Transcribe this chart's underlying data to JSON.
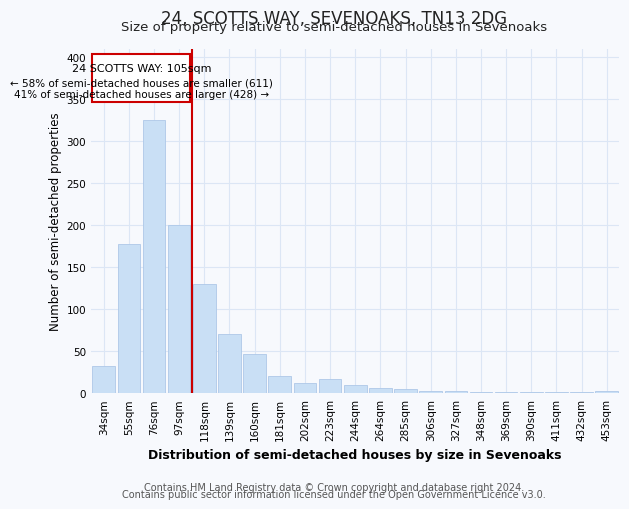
{
  "title": "24, SCOTTS WAY, SEVENOAKS, TN13 2DG",
  "subtitle": "Size of property relative to semi-detached houses in Sevenoaks",
  "xlabel": "Distribution of semi-detached houses by size in Sevenoaks",
  "ylabel": "Number of semi-detached properties",
  "footer_line1": "Contains HM Land Registry data © Crown copyright and database right 2024.",
  "footer_line2": "Contains public sector information licensed under the Open Government Licence v3.0.",
  "categories": [
    "34sqm",
    "55sqm",
    "76sqm",
    "97sqm",
    "118sqm",
    "139sqm",
    "160sqm",
    "181sqm",
    "202sqm",
    "223sqm",
    "244sqm",
    "264sqm",
    "285sqm",
    "306sqm",
    "327sqm",
    "348sqm",
    "369sqm",
    "390sqm",
    "411sqm",
    "432sqm",
    "453sqm"
  ],
  "values": [
    32,
    178,
    325,
    200,
    130,
    70,
    47,
    21,
    12,
    17,
    10,
    6,
    5,
    3,
    3,
    1,
    1,
    1,
    1,
    1,
    3
  ],
  "bar_color": "#c9dff5",
  "bar_edge_color": "#aec8e8",
  "highlight_color": "#cc0000",
  "highlight_index": 3,
  "annotation_title": "24 SCOTTS WAY: 105sqm",
  "annotation_line1": "← 58% of semi-detached houses are smaller (611)",
  "annotation_line2": "41% of semi-detached houses are larger (428) →",
  "ylim": [
    0,
    410
  ],
  "yticks": [
    0,
    50,
    100,
    150,
    200,
    250,
    300,
    350,
    400
  ],
  "background_color": "#f7f9fd",
  "grid_color": "#dce6f5",
  "title_fontsize": 12,
  "subtitle_fontsize": 9.5,
  "axis_label_fontsize": 9,
  "ylabel_fontsize": 8.5,
  "tick_fontsize": 7.5,
  "footer_fontsize": 7
}
